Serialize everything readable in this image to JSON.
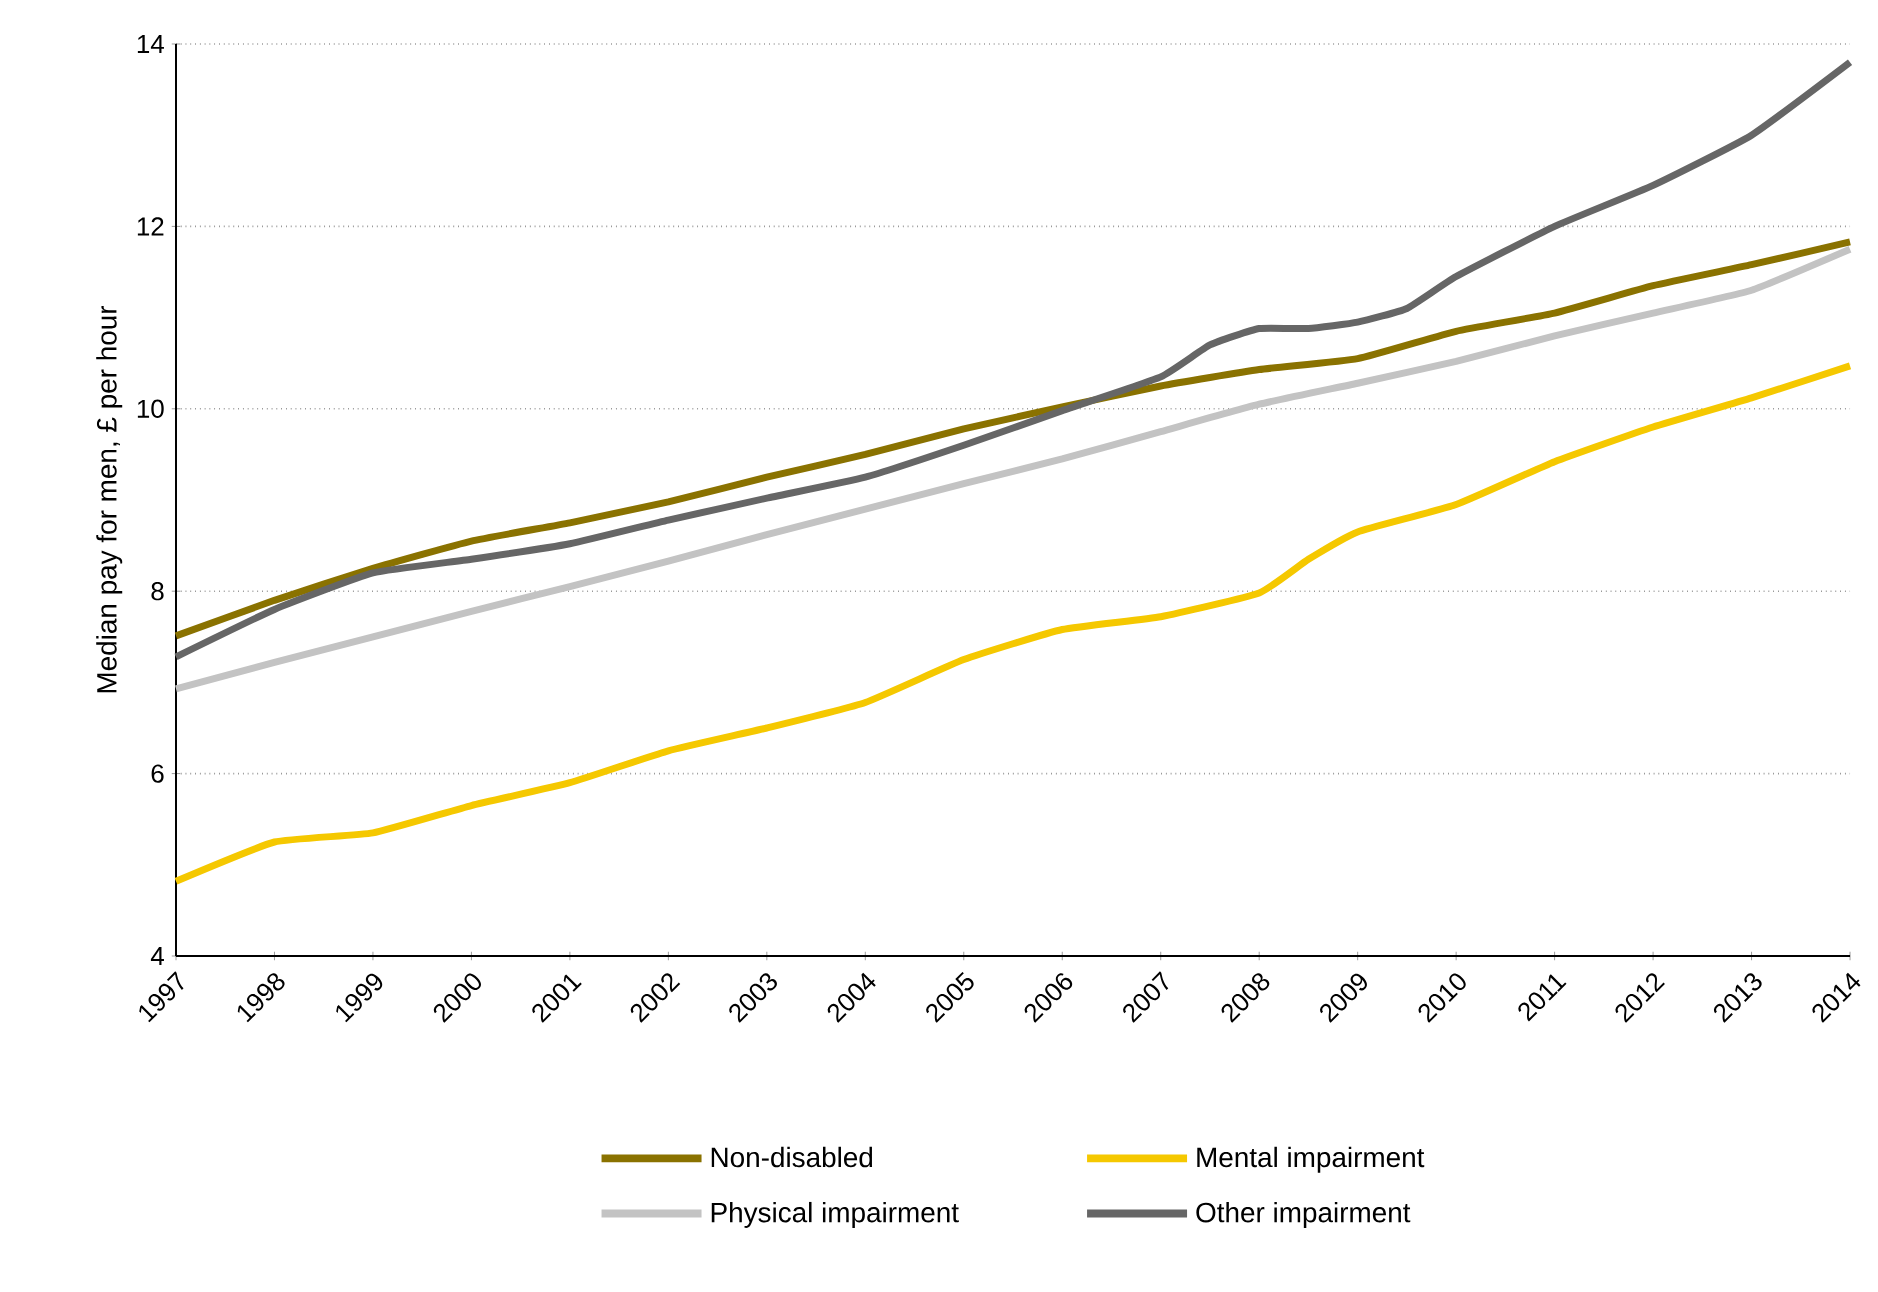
{
  "chart_data": {
    "type": "line",
    "ylabel": "Median pay for men, £ per hour",
    "x": [
      1997,
      1998,
      1999,
      2000,
      2001,
      2002,
      2003,
      2004,
      2005,
      2006,
      2007,
      2008,
      2009,
      2010,
      2011,
      2012,
      2013,
      2014
    ],
    "series": [
      {
        "name": "Non-disabled",
        "color": "#8a7200",
        "values": [
          7.51,
          7.9,
          8.25,
          8.55,
          8.75,
          8.98,
          9.25,
          9.5,
          9.78,
          10.02,
          10.25,
          10.43,
          10.55,
          10.85,
          11.05,
          11.35,
          11.58,
          11.83
        ]
      },
      {
        "name": "Mental impairment",
        "color": "#f5c800",
        "x": [
          1997,
          1998,
          1999,
          2000,
          2001,
          2002,
          2003,
          2004,
          2005,
          2006,
          2007,
          2008,
          2008.5,
          2009,
          2010,
          2011,
          2012,
          2013,
          2014
        ],
        "values": [
          4.82,
          5.25,
          5.35,
          5.65,
          5.9,
          6.25,
          6.5,
          6.78,
          7.25,
          7.58,
          7.72,
          7.98,
          8.35,
          8.65,
          8.95,
          9.42,
          9.8,
          10.12,
          10.47
        ]
      },
      {
        "name": "Physical impairment",
        "color": "#c3c3c3",
        "values": [
          6.93,
          7.22,
          7.5,
          7.78,
          8.05,
          8.33,
          8.62,
          8.9,
          9.18,
          9.45,
          9.75,
          10.05,
          10.28,
          10.52,
          10.8,
          11.05,
          11.3,
          11.75
        ]
      },
      {
        "name": "Other impairment",
        "color": "#666666",
        "x": [
          1997,
          1998,
          1999,
          2000,
          2001,
          2002,
          2003,
          2004,
          2005,
          2006,
          2007,
          2007.5,
          2008,
          2008.5,
          2009,
          2009.5,
          2010,
          2011,
          2012,
          2013,
          2014
        ],
        "values": [
          7.28,
          7.8,
          8.2,
          8.35,
          8.52,
          8.78,
          9.02,
          9.25,
          9.6,
          9.98,
          10.35,
          10.7,
          10.88,
          10.88,
          10.95,
          11.1,
          11.45,
          12.0,
          12.45,
          13.0,
          13.8
        ]
      }
    ],
    "xlim": [
      1997,
      2014
    ],
    "xticks": [
      1997,
      1998,
      1999,
      2000,
      2001,
      2002,
      2003,
      2004,
      2005,
      2006,
      2007,
      2008,
      2009,
      2010,
      2011,
      2012,
      2013,
      2014
    ],
    "ylim": [
      4,
      14
    ],
    "yticks": [
      4,
      6,
      8,
      10,
      12,
      14
    ],
    "grid": "y",
    "legend": "bottom"
  }
}
